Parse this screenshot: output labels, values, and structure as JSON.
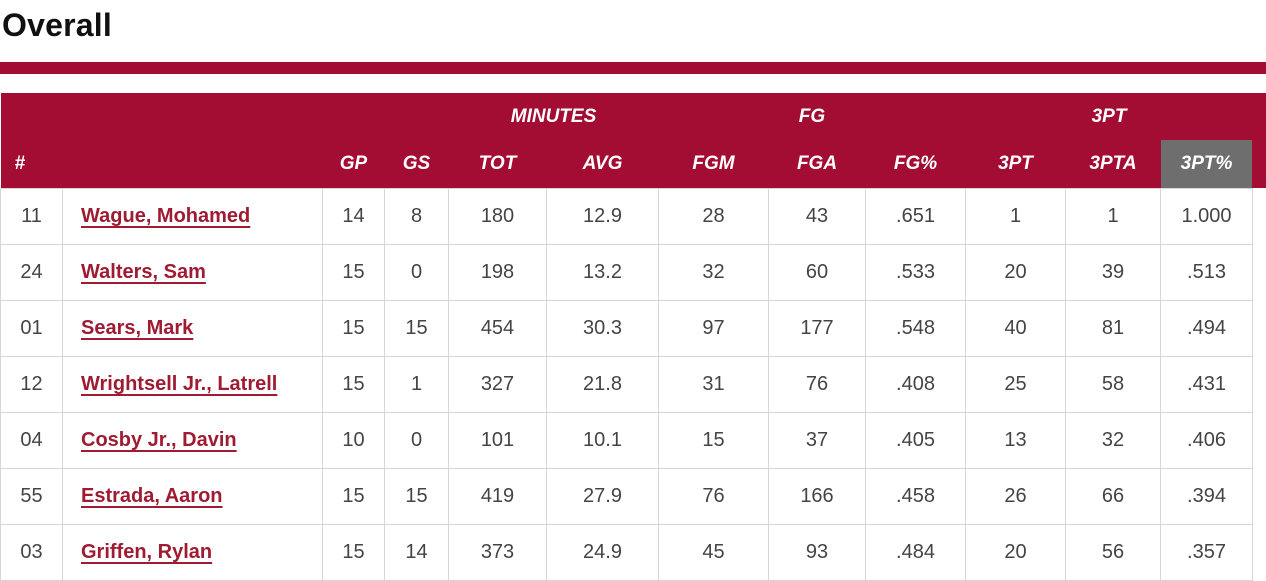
{
  "page": {
    "title": "Overall"
  },
  "theme": {
    "crimson": "#A30D33",
    "link_crimson": "#9E1B32",
    "highlight_gray": "#6E6E6E",
    "text_gray": "#444444",
    "border_gray": "#D6D6D6"
  },
  "table": {
    "group_headers": [
      {
        "label": "",
        "span": 4
      },
      {
        "label": "MINUTES",
        "span": 2
      },
      {
        "label": "FG",
        "span": 3
      },
      {
        "label": "3PT",
        "span": 3
      }
    ],
    "columns": [
      "#",
      "",
      "GP",
      "GS",
      "TOT",
      "AVG",
      "FGM",
      "FGA",
      "FG%",
      "3PT",
      "3PTA",
      "3PT%"
    ],
    "highlighted_column": "3PT%",
    "rows": [
      {
        "number": "11",
        "name": "Wague, Mohamed",
        "gp": "14",
        "gs": "8",
        "tot": "180",
        "avg": "12.9",
        "fgm": "28",
        "fga": "43",
        "fg_pct": ".651",
        "tp": "1",
        "tpa": "1",
        "tp_pct": "1.000"
      },
      {
        "number": "24",
        "name": "Walters, Sam",
        "gp": "15",
        "gs": "0",
        "tot": "198",
        "avg": "13.2",
        "fgm": "32",
        "fga": "60",
        "fg_pct": ".533",
        "tp": "20",
        "tpa": "39",
        "tp_pct": ".513"
      },
      {
        "number": "01",
        "name": "Sears, Mark",
        "gp": "15",
        "gs": "15",
        "tot": "454",
        "avg": "30.3",
        "fgm": "97",
        "fga": "177",
        "fg_pct": ".548",
        "tp": "40",
        "tpa": "81",
        "tp_pct": ".494"
      },
      {
        "number": "12",
        "name": "Wrightsell Jr., Latrell",
        "gp": "15",
        "gs": "1",
        "tot": "327",
        "avg": "21.8",
        "fgm": "31",
        "fga": "76",
        "fg_pct": ".408",
        "tp": "25",
        "tpa": "58",
        "tp_pct": ".431"
      },
      {
        "number": "04",
        "name": "Cosby Jr., Davin",
        "gp": "10",
        "gs": "0",
        "tot": "101",
        "avg": "10.1",
        "fgm": "15",
        "fga": "37",
        "fg_pct": ".405",
        "tp": "13",
        "tpa": "32",
        "tp_pct": ".406"
      },
      {
        "number": "55",
        "name": "Estrada, Aaron",
        "gp": "15",
        "gs": "15",
        "tot": "419",
        "avg": "27.9",
        "fgm": "76",
        "fga": "166",
        "fg_pct": ".458",
        "tp": "26",
        "tpa": "66",
        "tp_pct": ".394"
      },
      {
        "number": "03",
        "name": "Griffen, Rylan",
        "gp": "15",
        "gs": "14",
        "tot": "373",
        "avg": "24.9",
        "fgm": "45",
        "fga": "93",
        "fg_pct": ".484",
        "tp": "20",
        "tpa": "56",
        "tp_pct": ".357"
      }
    ]
  }
}
